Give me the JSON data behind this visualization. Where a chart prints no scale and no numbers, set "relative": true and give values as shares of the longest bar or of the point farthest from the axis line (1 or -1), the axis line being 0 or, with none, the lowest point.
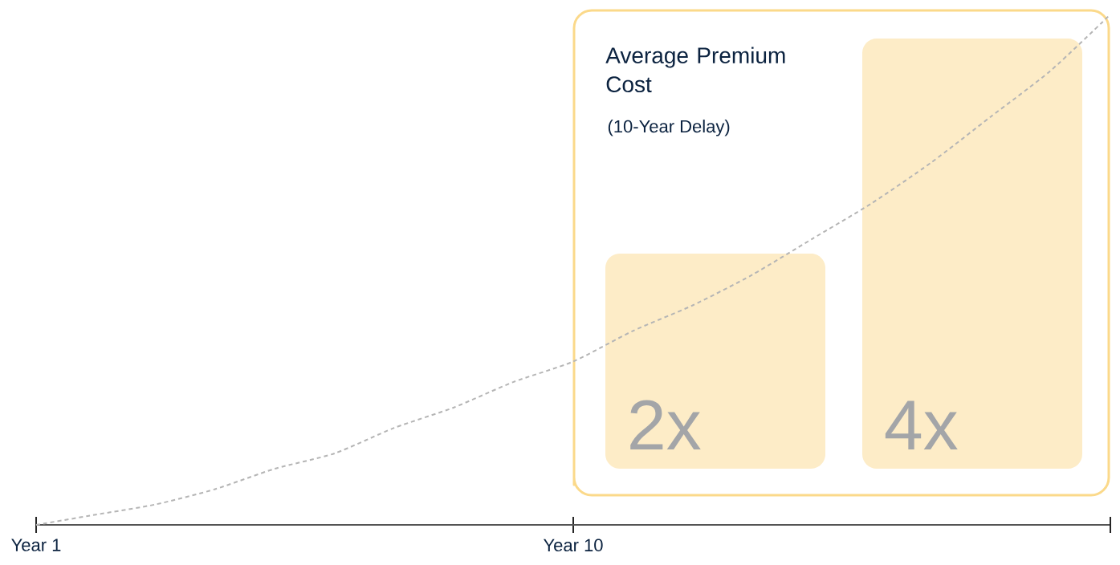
{
  "chart_data": [
    {
      "type": "line",
      "relative": true,
      "line_style": "dashed",
      "color": "#b5b5b5",
      "categories": [
        "Year 1",
        null,
        null,
        null,
        null,
        null,
        null,
        null,
        null,
        "Year 10",
        null,
        null,
        null,
        null,
        null,
        null,
        null,
        null,
        null
      ],
      "values": [
        0,
        0.02,
        0.04,
        0.07,
        0.11,
        0.14,
        0.19,
        0.23,
        0.28,
        0.32,
        0.38,
        0.43,
        0.49,
        0.56,
        0.63,
        0.71,
        0.8,
        0.89,
        1
      ]
    },
    {
      "type": "bar",
      "title": "Average Premium Cost",
      "subtitle": "(10-Year Delay)",
      "categories": [
        null,
        null
      ],
      "values": [
        2,
        4
      ],
      "value_labels": [
        "2x",
        "4x"
      ],
      "color": "#fdecc7"
    }
  ]
}
